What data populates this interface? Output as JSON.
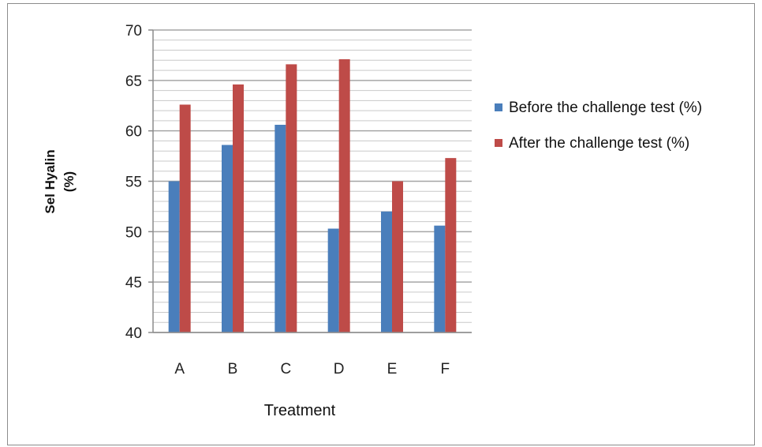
{
  "chart_data": {
    "type": "bar",
    "title": "",
    "xlabel": "Treatment",
    "ylabel_line1": "Sel Hyalin",
    "ylabel_line2": "(%)",
    "categories": [
      "A",
      "B",
      "C",
      "D",
      "E",
      "F"
    ],
    "ylim": [
      40,
      70
    ],
    "yticks": [
      40,
      45,
      50,
      55,
      60,
      65,
      70
    ],
    "minor_grid_step": 1,
    "grid": true,
    "legend_position": "right",
    "series": [
      {
        "name": "Before the challenge test (%)",
        "color": "#4a7ebb",
        "values": [
          55.0,
          58.6,
          60.6,
          50.3,
          52.0,
          50.6
        ]
      },
      {
        "name": "After the challenge test (%)",
        "color": "#be4b48",
        "values": [
          62.6,
          64.6,
          66.6,
          67.1,
          55.0,
          57.3
        ]
      }
    ]
  }
}
